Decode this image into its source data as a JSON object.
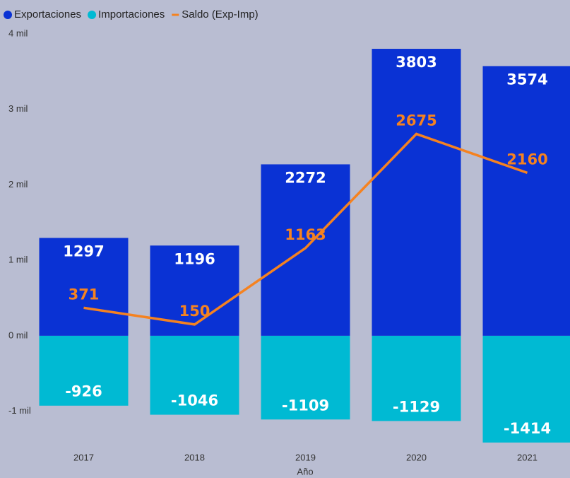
{
  "chart_data": {
    "type": "bar-line",
    "x_label": "Año",
    "categories": [
      "2017",
      "2018",
      "2019",
      "2020",
      "2021"
    ],
    "series": [
      {
        "name": "Exportaciones",
        "color": "#0a32d4",
        "type": "bar",
        "values": [
          1297,
          1196,
          2272,
          3803,
          3574
        ]
      },
      {
        "name": "Importaciones",
        "color": "#00bad3",
        "type": "bar",
        "values": [
          -926,
          -1046,
          -1109,
          -1129,
          -1414
        ]
      },
      {
        "name": "Saldo (Exp-Imp)",
        "color": "#f58220",
        "type": "line",
        "values": [
          371,
          150,
          1163,
          2675,
          2160
        ]
      }
    ],
    "ylim": [
      -1500,
      4000
    ],
    "yticks": [
      {
        "value": -1000,
        "label": "-1 mil"
      },
      {
        "value": 0,
        "label": "0 mil"
      },
      {
        "value": 1000,
        "label": "1 mil"
      },
      {
        "value": 2000,
        "label": "2 mil"
      },
      {
        "value": 3000,
        "label": "3 mil"
      },
      {
        "value": 4000,
        "label": "4 mil"
      }
    ],
    "legend": "top-left"
  }
}
